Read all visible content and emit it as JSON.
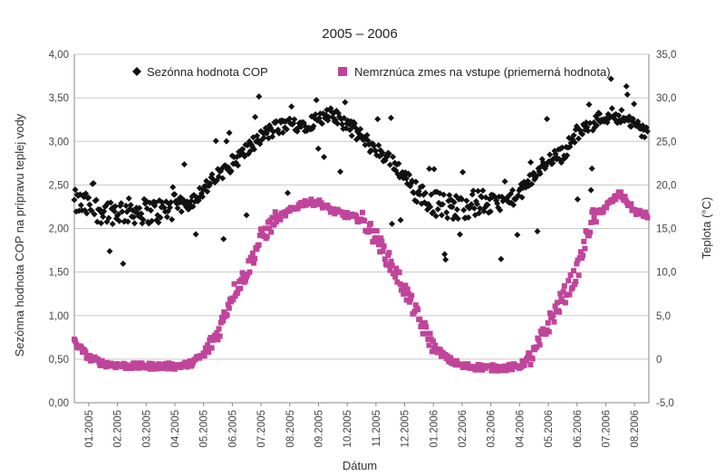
{
  "chart_data": {
    "type": "scatter",
    "title": "2005 – 2006",
    "xlabel": "Dátum",
    "ylabel_left": "Sezónna hodnota COP na prípravu teplej vody",
    "ylabel_right": "Teplota (°C)",
    "xlim": [
      0,
      20
    ],
    "x_tick_labels": [
      "01.2005",
      "02.2005",
      "03.2005",
      "04.2005",
      "05.2005",
      "06.2005",
      "07.2005",
      "08.2005",
      "09.2005",
      "10.2005",
      "11.2005",
      "12.2005",
      "01.2006",
      "02.2006",
      "03.2006",
      "04.2006",
      "05.2006",
      "06.2006",
      "07.2006",
      "08.2006"
    ],
    "ylim_left": [
      0,
      4
    ],
    "y_tick_labels_left": [
      "0,00",
      "0,50",
      "1,00",
      "1,50",
      "2,00",
      "2,50",
      "3,00",
      "3,50",
      "4,00"
    ],
    "ylim_right": [
      -5,
      35
    ],
    "y_tick_labels_right": [
      "-5,0",
      "0",
      "5,0",
      "10,0",
      "15,0",
      "20,0",
      "25,0",
      "30,0",
      "35,0"
    ],
    "legend": "top",
    "grid": "horizontal",
    "colors": {
      "cop": "#111111",
      "temp": "#c0449b"
    },
    "series": [
      {
        "name": "Sezónna hodnota COP",
        "axis": "left",
        "marker": "diamond",
        "color": "#111111",
        "points": [
          [
            0,
            2.3
          ],
          [
            0.5,
            2.25
          ],
          [
            1,
            2.2
          ],
          [
            1.5,
            2.2
          ],
          [
            2,
            2.2
          ],
          [
            2.5,
            2.2
          ],
          [
            3,
            2.2
          ],
          [
            3.5,
            2.25
          ],
          [
            4,
            2.3
          ],
          [
            4.5,
            2.45
          ],
          [
            5,
            2.6
          ],
          [
            5.5,
            2.75
          ],
          [
            6,
            2.9
          ],
          [
            6.5,
            3.05
          ],
          [
            7,
            3.15
          ],
          [
            7.5,
            3.2
          ],
          [
            8,
            3.2
          ],
          [
            8.5,
            3.25
          ],
          [
            9,
            3.3
          ],
          [
            9.5,
            3.2
          ],
          [
            10,
            3.05
          ],
          [
            10.5,
            2.9
          ],
          [
            11,
            2.8
          ],
          [
            11.5,
            2.6
          ],
          [
            12,
            2.4
          ],
          [
            12.5,
            2.3
          ],
          [
            13,
            2.25
          ],
          [
            13.5,
            2.25
          ],
          [
            14,
            2.3
          ],
          [
            14.5,
            2.3
          ],
          [
            15,
            2.3
          ],
          [
            15.5,
            2.4
          ],
          [
            16,
            2.6
          ],
          [
            16.5,
            2.8
          ],
          [
            17,
            2.85
          ],
          [
            17.5,
            3.1
          ],
          [
            18,
            3.2
          ],
          [
            18.5,
            3.3
          ],
          [
            19,
            3.3
          ],
          [
            19.5,
            3.2
          ],
          [
            19.9,
            3.1
          ]
        ]
      },
      {
        "name": "Nemrznúca zmes na vstupe (priemerná hodnota)",
        "axis": "right",
        "marker": "square",
        "color": "#c0449b",
        "points": [
          [
            0,
            2.0
          ],
          [
            0.5,
            0.2
          ],
          [
            1,
            -0.5
          ],
          [
            1.5,
            -0.7
          ],
          [
            2,
            -0.8
          ],
          [
            2.5,
            -0.8
          ],
          [
            3,
            -0.8
          ],
          [
            3.5,
            -0.8
          ],
          [
            4,
            -0.6
          ],
          [
            4.5,
            0.5
          ],
          [
            5,
            3.0
          ],
          [
            5.5,
            7.5
          ],
          [
            6,
            10.0
          ],
          [
            6.5,
            14.0
          ],
          [
            7,
            16.0
          ],
          [
            7.5,
            17.0
          ],
          [
            8,
            18.0
          ],
          [
            8.5,
            18.0
          ],
          [
            9,
            17.0
          ],
          [
            9.5,
            16.5
          ],
          [
            10,
            16.0
          ],
          [
            10.5,
            14.0
          ],
          [
            11,
            11.0
          ],
          [
            11.5,
            8.0
          ],
          [
            12,
            4.5
          ],
          [
            12.5,
            1.5
          ],
          [
            13,
            0
          ],
          [
            13.5,
            -0.8
          ],
          [
            14,
            -0.9
          ],
          [
            14.5,
            -1.0
          ],
          [
            15,
            -1.0
          ],
          [
            15.5,
            -0.8
          ],
          [
            16,
            0.5
          ],
          [
            16.5,
            4.0
          ],
          [
            17,
            7.0
          ],
          [
            17.5,
            10.0
          ],
          [
            18,
            16.0
          ],
          [
            18.5,
            17.5
          ],
          [
            19,
            19.0
          ],
          [
            19.5,
            17.0
          ],
          [
            19.9,
            16.5
          ]
        ]
      }
    ]
  }
}
